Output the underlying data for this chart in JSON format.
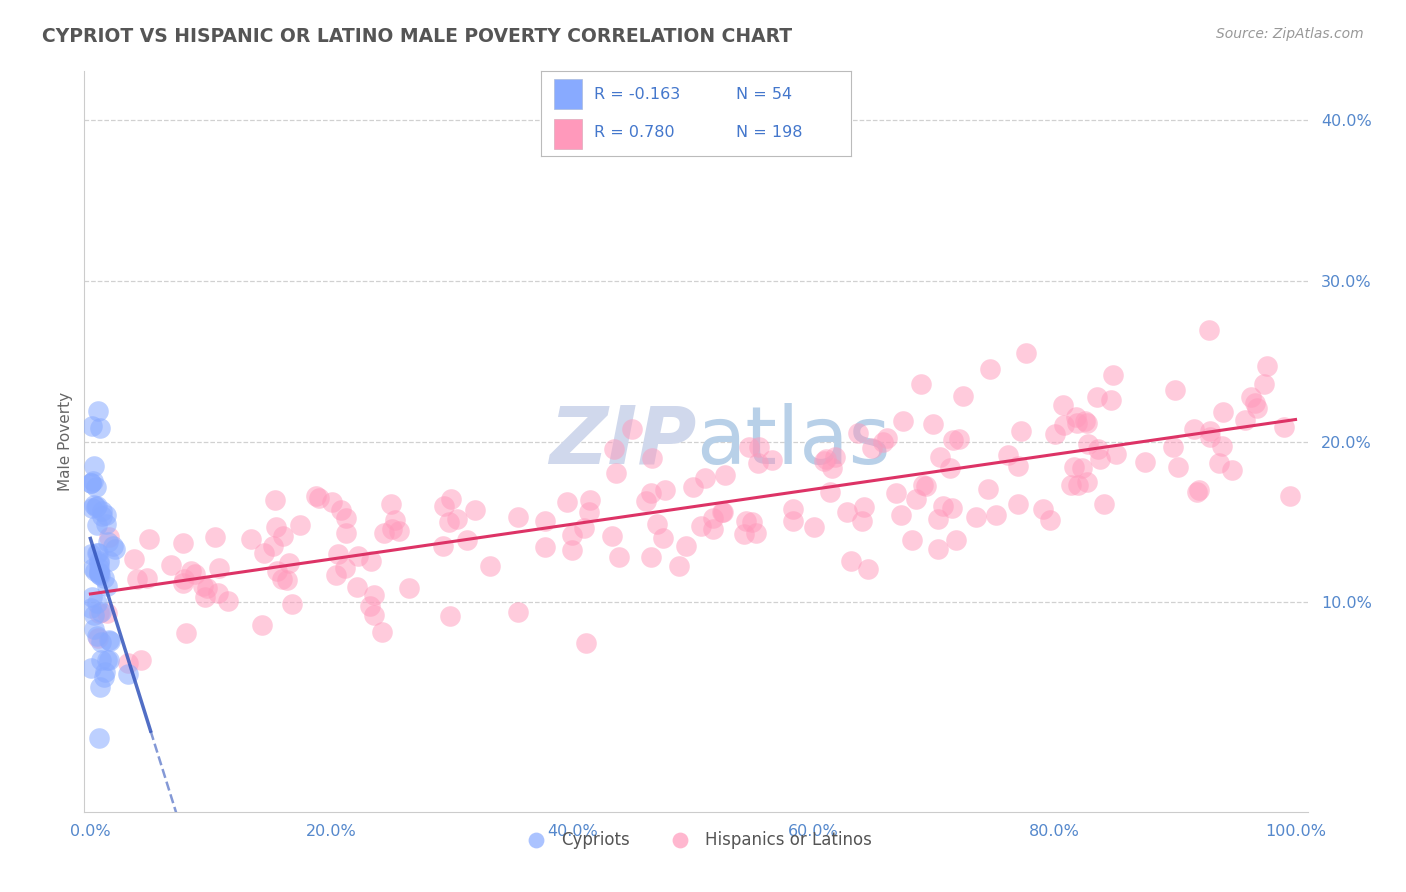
{
  "title": "CYPRIOT VS HISPANIC OR LATINO MALE POVERTY CORRELATION CHART",
  "source_text": "Source: ZipAtlas.com",
  "ylabel": "Male Poverty",
  "xlim": [
    0,
    100
  ],
  "ylim": [
    -3,
    43
  ],
  "yticks": [
    10,
    20,
    30,
    40
  ],
  "ytick_labels": [
    "10.0%",
    "20.0%",
    "30.0%",
    "40.0%"
  ],
  "xticks": [
    0,
    20,
    40,
    60,
    80,
    100
  ],
  "xtick_labels": [
    "0.0%",
    "20.0%",
    "40.0%",
    "60.0%",
    "80.0%",
    "100.0%"
  ],
  "legend_R1": "-0.163",
  "legend_N1": "54",
  "legend_R2": "0.780",
  "legend_N2": "198",
  "cypriot_color": "#88aaff",
  "hispanic_color": "#ff99bb",
  "line1_color": "#3355bb",
  "line2_color": "#dd3366",
  "watermark_zip": "ZIP",
  "watermark_atlas": "atlas",
  "watermark_color_zip": "#c8d0e8",
  "watermark_color_atlas": "#a8c4e0",
  "background_color": "#ffffff",
  "grid_color": "#cccccc",
  "label1": "Cypriots",
  "label2": "Hispanics or Latinos",
  "R1": -0.163,
  "R2": 0.78,
  "N1": 54,
  "N2": 198,
  "title_color": "#555555",
  "tick_label_color": "#5588cc",
  "legend_text_color": "#4477cc"
}
